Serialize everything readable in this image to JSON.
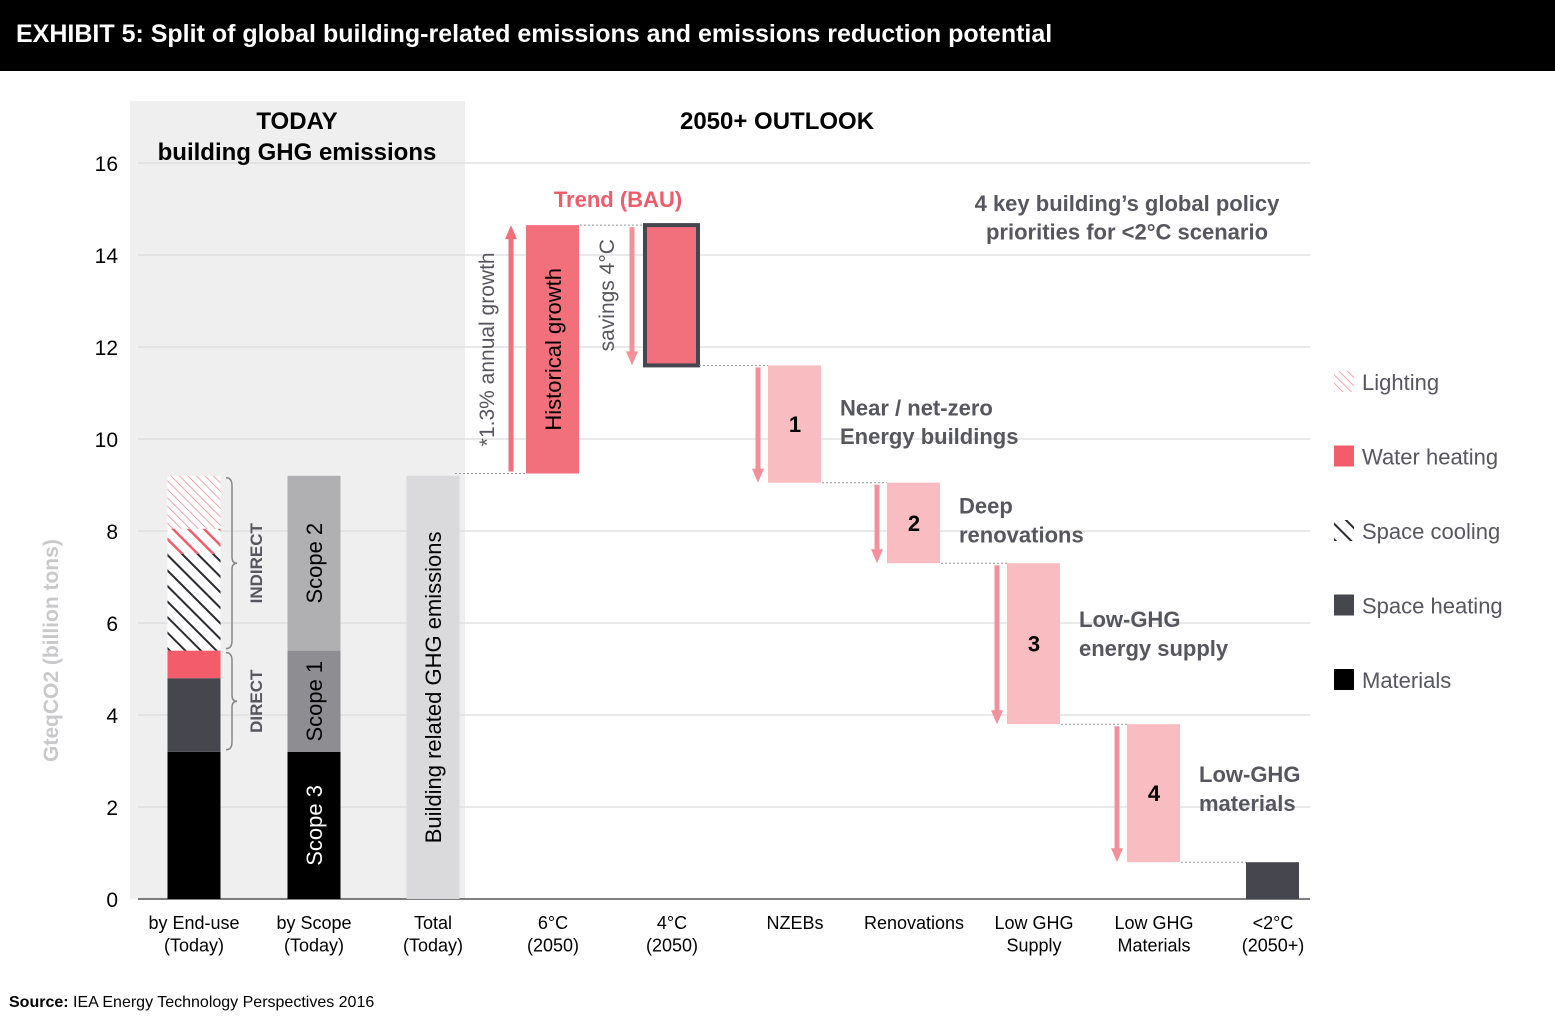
{
  "header": {
    "title": "EXHIBIT 5: Split of global building-related emissions and emissions reduction potential"
  },
  "footer": {
    "source_label": "Source:",
    "source_text": " IEA Energy Technology Perspectives 2016"
  },
  "colors": {
    "materials": "#000000",
    "space_heating": "#46464f",
    "water_heating": "#f35d6b",
    "lighting": "#f57c87",
    "scope_gray": "#b0b0b2",
    "scope_dark": "#8e8e92",
    "total_bar": "#dadadc",
    "today_panel": "#efefef",
    "bau": "#f26f7c",
    "reduction": "#f9bcc1",
    "arrow": "#f39099",
    "trend_text": "#f05c6b",
    "annotation_text": "#56565e"
  },
  "chart_data": {
    "type": "bar",
    "ylabel": "GteqCO2 (billion tons)",
    "ylim": [
      0,
      16
    ],
    "yticks": [
      0,
      2,
      4,
      6,
      8,
      10,
      12,
      14,
      16
    ],
    "grid": true,
    "sections": {
      "today": "TODAY\nbuilding GHG emissions",
      "outlook": "2050+ OUTLOOK"
    },
    "categories": [
      "by End-use\n(Today)",
      "by Scope\n(Today)",
      "Total\n(Today)",
      "6°C\n(2050)",
      "4°C\n(2050)",
      "NZEBs",
      "Renovations",
      "Low GHG\nSupply",
      "Low GHG\nMaterials",
      "<2°C\n(2050+)"
    ],
    "end_use_stack": [
      {
        "name": "Materials",
        "start": 0,
        "end": 3.2
      },
      {
        "name": "Space heating",
        "start": 3.2,
        "end": 4.8
      },
      {
        "name": "Water heating",
        "start": 4.8,
        "end": 5.4
      },
      {
        "name": "Space cooling",
        "start": 5.4,
        "end": 6.6
      },
      {
        "name": "Space cooling",
        "start": 6.6,
        "end": 7.5
      },
      {
        "name": "Water heating",
        "start": 7.5,
        "end": 8.05
      },
      {
        "name": "Lighting",
        "start": 8.05,
        "end": 9.2
      }
    ],
    "scope_stack": [
      {
        "name": "Scope 3",
        "start": 0,
        "end": 3.2
      },
      {
        "name": "Scope 1",
        "start": 3.2,
        "end": 5.4
      },
      {
        "name": "Scope 2",
        "start": 5.4,
        "end": 9.2
      }
    ],
    "total_today": {
      "label": "Building related GHG emissions",
      "value": 9.2
    },
    "groupings": [
      {
        "label": "DIRECT",
        "from": 3.2,
        "to": 5.4
      },
      {
        "label": "INDIRECT",
        "from": 5.4,
        "to": 9.2
      }
    ],
    "waterfall": [
      {
        "category": "6°C\n(2050)",
        "start": 9.25,
        "end": 14.65,
        "label": "Historical growth",
        "arrow_label": "*1.3% annual growth"
      },
      {
        "category": "4°C\n(2050)",
        "start": 11.6,
        "end": 14.65,
        "arrow_label": "savings 4°C"
      },
      {
        "category": "NZEBs",
        "start": 9.05,
        "end": 11.6,
        "number": "1",
        "label": "Near / net-zero\nEnergy buildings"
      },
      {
        "category": "Renovations",
        "start": 7.3,
        "end": 9.05,
        "number": "2",
        "label": "Deep\nrenovations"
      },
      {
        "category": "Low GHG\nSupply",
        "start": 3.8,
        "end": 7.3,
        "number": "3",
        "label": "Low-GHG\nenergy supply"
      },
      {
        "category": "Low GHG\nMaterials",
        "start": 0.8,
        "end": 3.8,
        "number": "4",
        "label": "Low-GHG\nmaterials"
      },
      {
        "category": "<2°C\n(2050+)",
        "start": 0,
        "end": 0.8
      }
    ],
    "annotations": {
      "trend": "Trend (BAU)",
      "policy": "4 key building’s global policy\npriorities for <2°C scenario"
    },
    "legend": {
      "position": "right",
      "items": [
        "Lighting",
        "Water heating",
        "Space cooling",
        "Space heating",
        "Materials"
      ]
    }
  }
}
